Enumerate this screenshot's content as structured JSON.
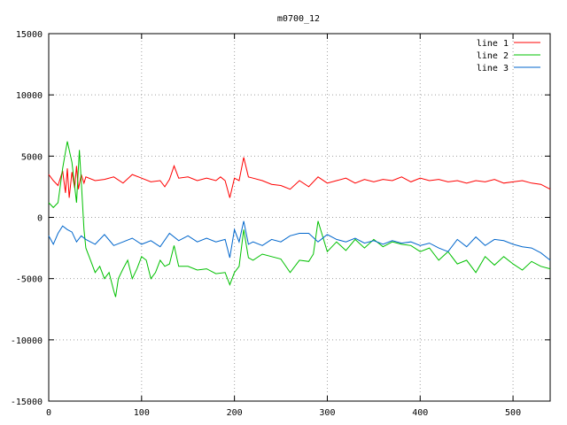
{
  "chart_data": {
    "type": "line",
    "title": "m0700_12",
    "xlabel": "",
    "ylabel": "",
    "xlim": [
      0,
      540
    ],
    "ylim": [
      -15000,
      15000
    ],
    "grid": true,
    "legend_position": "top-right",
    "x_ticks": [
      0,
      100,
      200,
      300,
      400,
      500
    ],
    "y_ticks": [
      -15000,
      -10000,
      -5000,
      0,
      5000,
      10000,
      15000
    ],
    "x_tick_labels": [
      "0",
      "100",
      "200",
      "300",
      "400",
      "500"
    ],
    "y_tick_labels": [
      "-15000",
      "-10000",
      "-5000",
      "0",
      "5000",
      "10000",
      "15000"
    ],
    "series": [
      {
        "name": "line 1",
        "color": "#ff0000",
        "x": [
          0,
          5,
          10,
          15,
          18,
          20,
          22,
          25,
          28,
          30,
          32,
          35,
          38,
          40,
          50,
          60,
          70,
          80,
          90,
          100,
          110,
          120,
          125,
          130,
          135,
          140,
          150,
          160,
          170,
          180,
          185,
          190,
          195,
          200,
          205,
          210,
          215,
          220,
          230,
          240,
          250,
          260,
          270,
          280,
          290,
          300,
          310,
          320,
          330,
          340,
          350,
          360,
          370,
          380,
          390,
          400,
          410,
          420,
          430,
          440,
          450,
          460,
          470,
          480,
          490,
          500,
          510,
          520,
          530,
          540
        ],
        "y": [
          3500,
          3000,
          2600,
          3800,
          2000,
          4000,
          1600,
          3700,
          2400,
          4200,
          2300,
          3500,
          2800,
          3300,
          3000,
          3100,
          3300,
          2800,
          3500,
          3200,
          2900,
          3000,
          2500,
          3100,
          4200,
          3200,
          3300,
          3000,
          3200,
          3000,
          3300,
          3000,
          1600,
          3200,
          3000,
          4900,
          3300,
          3200,
          3000,
          2700,
          2600,
          2300,
          3000,
          2500,
          3300,
          2800,
          3000,
          3200,
          2800,
          3100,
          2900,
          3100,
          3000,
          3300,
          2900,
          3200,
          3000,
          3100,
          2900,
          3000,
          2800,
          3000,
          2900,
          3100,
          2800,
          2900,
          3000,
          2800,
          2700,
          2300
        ]
      },
      {
        "name": "line 2",
        "color": "#00c000",
        "x": [
          0,
          5,
          10,
          15,
          20,
          25,
          30,
          33,
          35,
          38,
          40,
          45,
          50,
          55,
          60,
          65,
          70,
          72,
          75,
          80,
          85,
          90,
          95,
          100,
          105,
          110,
          115,
          120,
          125,
          130,
          135,
          140,
          150,
          160,
          170,
          180,
          190,
          195,
          200,
          205,
          210,
          215,
          220,
          230,
          240,
          250,
          260,
          270,
          280,
          285,
          290,
          300,
          310,
          320,
          330,
          340,
          350,
          360,
          370,
          380,
          390,
          400,
          410,
          420,
          430,
          440,
          450,
          460,
          470,
          480,
          490,
          500,
          510,
          520,
          530,
          540
        ],
        "y": [
          1200,
          800,
          1200,
          4000,
          6200,
          4500,
          1200,
          5500,
          3000,
          -1000,
          -2500,
          -3500,
          -4500,
          -4000,
          -5000,
          -4500,
          -6000,
          -6500,
          -5000,
          -4200,
          -3500,
          -5000,
          -4200,
          -3200,
          -3500,
          -5000,
          -4500,
          -3500,
          -4000,
          -3800,
          -2300,
          -4000,
          -4000,
          -4300,
          -4200,
          -4600,
          -4500,
          -5500,
          -4500,
          -4000,
          -1000,
          -3300,
          -3500,
          -3000,
          -3200,
          -3400,
          -4500,
          -3500,
          -3600,
          -3000,
          -300,
          -2800,
          -2000,
          -2700,
          -1800,
          -2500,
          -1800,
          -2400,
          -2000,
          -2200,
          -2300,
          -2800,
          -2500,
          -3500,
          -2800,
          -3800,
          -3500,
          -4500,
          -3200,
          -3900,
          -3200,
          -3800,
          -4300,
          -3600,
          -4000,
          -4200
        ]
      },
      {
        "name": "line 3",
        "color": "#0066cc",
        "x": [
          0,
          5,
          10,
          15,
          20,
          25,
          30,
          35,
          40,
          50,
          60,
          70,
          80,
          90,
          100,
          110,
          120,
          130,
          140,
          150,
          160,
          170,
          180,
          190,
          195,
          200,
          205,
          210,
          215,
          220,
          230,
          240,
          250,
          260,
          270,
          280,
          290,
          300,
          310,
          320,
          330,
          340,
          350,
          360,
          370,
          380,
          390,
          400,
          410,
          420,
          430,
          440,
          450,
          460,
          470,
          480,
          490,
          500,
          510,
          520,
          530,
          540
        ],
        "y": [
          -1500,
          -2200,
          -1300,
          -700,
          -1000,
          -1200,
          -2000,
          -1500,
          -1800,
          -2200,
          -1400,
          -2300,
          -2000,
          -1700,
          -2200,
          -1900,
          -2400,
          -1300,
          -1900,
          -1500,
          -2000,
          -1700,
          -2000,
          -1800,
          -3300,
          -1000,
          -2000,
          -300,
          -2200,
          -2000,
          -2300,
          -1800,
          -2000,
          -1500,
          -1300,
          -1300,
          -2000,
          -1400,
          -1800,
          -2000,
          -1700,
          -2100,
          -1900,
          -2200,
          -1900,
          -2100,
          -2000,
          -2300,
          -2100,
          -2500,
          -2800,
          -1800,
          -2400,
          -1600,
          -2300,
          -1800,
          -1900,
          -2200,
          -2400,
          -2500,
          -2900,
          -3500
        ]
      }
    ]
  }
}
